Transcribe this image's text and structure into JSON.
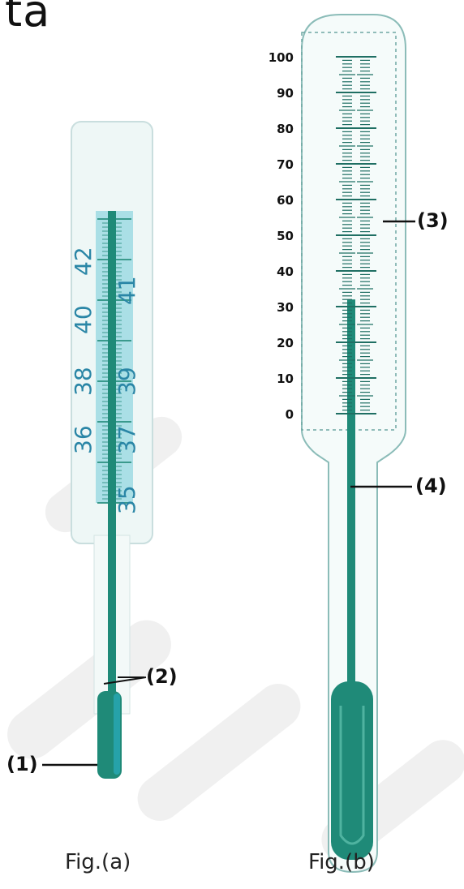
{
  "heading": "ta",
  "figure_a": {
    "caption": "Fig.(a)",
    "scale_labels": [
      "35",
      "36",
      "37",
      "38",
      "39",
      "40",
      "41",
      "42"
    ],
    "callouts": [
      "(1)",
      "(2)"
    ]
  },
  "figure_b": {
    "caption": "Fig.(b)",
    "scale_labels": [
      "100",
      "90",
      "80",
      "70",
      "60",
      "50",
      "40",
      "30",
      "20",
      "10",
      "0"
    ],
    "callouts": [
      "(3)",
      "(4)"
    ],
    "liquid_level": 32
  },
  "colors": {
    "ink": "#111111",
    "mercury": "#1f8a78",
    "glass_tint": "#7fc6c2",
    "cyan_tint": "#2bb3c9"
  }
}
